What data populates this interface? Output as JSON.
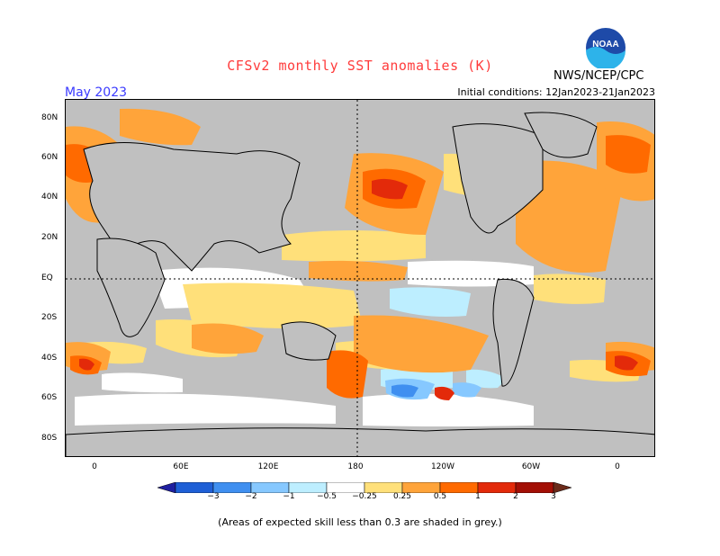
{
  "title": "CFSv2 monthly SST anomalies (K)",
  "agency": "NWS/NCEP/CPC",
  "logo_text": "NOAA",
  "month": "May 2023",
  "initial_conditions": "Initial conditions: 12Jan2023-21Jan2023",
  "footnote": "(Areas of expected skill less than 0.3 are shaded in grey.)",
  "lat_labels": [
    "80N",
    "60N",
    "40N",
    "20N",
    "EQ",
    "20S",
    "40S",
    "60S",
    "80S"
  ],
  "lon_labels": [
    "0",
    "60E",
    "120E",
    "180",
    "120W",
    "60W",
    "0"
  ],
  "colorbar": {
    "ticks": [
      "−3",
      "−2",
      "−1",
      "−0.5",
      "−0.25",
      "0.25",
      "0.5",
      "1",
      "2",
      "3"
    ],
    "colors": [
      "#1f1fa0",
      "#1e5fd6",
      "#3f8ff0",
      "#86c8ff",
      "#bdeeff",
      "#ffffff",
      "#ffe07a",
      "#ffa43a",
      "#ff6a00",
      "#e32a0a",
      "#a30f05",
      "#6b2a1a"
    ]
  }
}
